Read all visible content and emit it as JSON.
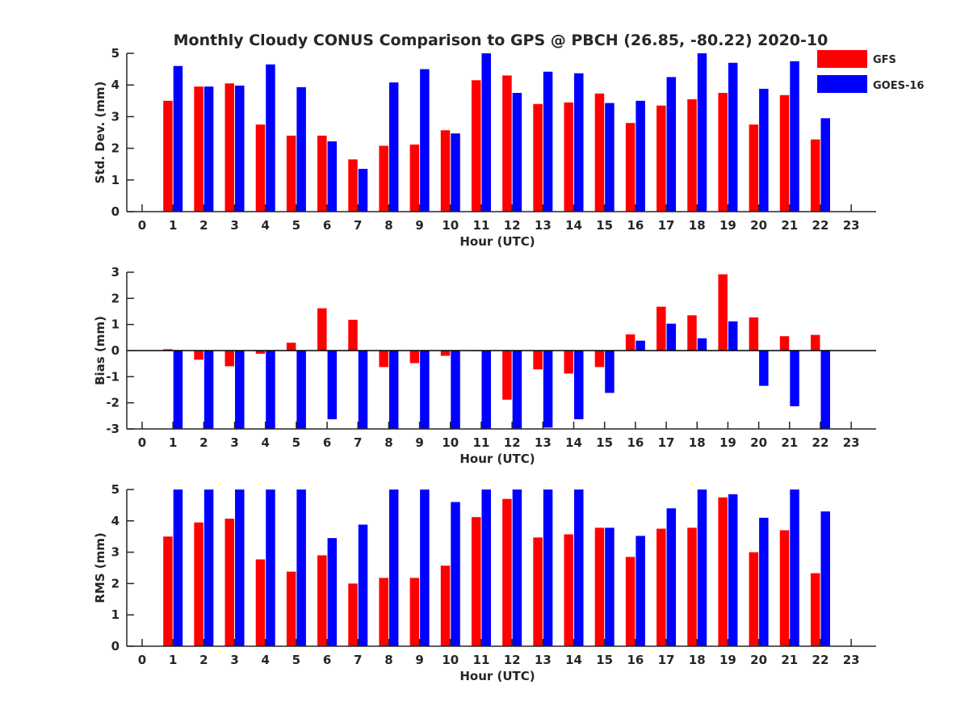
{
  "chart_data": {
    "title": "Monthly Cloudy CONUS Comparison to GPS @ PBCH (26.85, -80.22) 2020-10",
    "legend": {
      "placement": "top-right",
      "entries": [
        {
          "name": "GFS",
          "color": "#ff0000"
        },
        {
          "name": "GOES-16",
          "color": "#0000ff"
        }
      ]
    },
    "panels": [
      {
        "type": "bar",
        "xlabel": "Hour (UTC)",
        "ylabel": "Std. Dev. (mm)",
        "ylim": [
          0,
          5
        ],
        "yticks": [
          0,
          1,
          2,
          3,
          4,
          5
        ],
        "xticks": [
          "0",
          "1",
          "2",
          "3",
          "4",
          "5",
          "6",
          "7",
          "8",
          "9",
          "10",
          "11",
          "12",
          "13",
          "14",
          "15",
          "16",
          "17",
          "18",
          "19",
          "20",
          "21",
          "22",
          "23"
        ],
        "series": [
          {
            "name": "GFS",
            "values": [
              null,
              3.5,
              3.95,
              4.05,
              2.75,
              2.4,
              2.4,
              1.65,
              2.08,
              2.12,
              2.57,
              4.15,
              4.3,
              3.4,
              3.45,
              3.73,
              2.8,
              3.35,
              3.55,
              3.75,
              2.75,
              3.68,
              2.28,
              null
            ]
          },
          {
            "name": "GOES-16",
            "values": [
              null,
              4.6,
              3.95,
              3.98,
              4.65,
              3.93,
              2.22,
              1.35,
              4.08,
              4.5,
              2.47,
              5.0,
              3.75,
              4.42,
              4.37,
              3.43,
              3.5,
              4.25,
              5.0,
              4.7,
              3.88,
              4.75,
              2.95,
              null
            ]
          }
        ]
      },
      {
        "type": "bar",
        "xlabel": "Hour (UTC)",
        "ylabel": "Bias (mm)",
        "ylim": [
          -3,
          3
        ],
        "yticks": [
          -3,
          -2,
          -1,
          0,
          1,
          2,
          3
        ],
        "xticks": [
          "0",
          "1",
          "2",
          "3",
          "4",
          "5",
          "6",
          "7",
          "8",
          "9",
          "10",
          "11",
          "12",
          "13",
          "14",
          "15",
          "16",
          "17",
          "18",
          "19",
          "20",
          "21",
          "22",
          "23"
        ],
        "series": [
          {
            "name": "GFS",
            "values": [
              null,
              0.05,
              -0.35,
              -0.6,
              -0.12,
              0.3,
              1.62,
              1.18,
              -0.63,
              -0.48,
              -0.2,
              -0.02,
              -1.88,
              -0.72,
              -0.88,
              -0.63,
              0.62,
              1.68,
              1.35,
              2.92,
              1.27,
              0.55,
              0.6,
              null
            ]
          },
          {
            "name": "GOES-16",
            "values": [
              null,
              -3.0,
              -3.0,
              -3.0,
              -3.0,
              -3.0,
              -2.63,
              -3.0,
              -3.0,
              -3.0,
              -3.0,
              -3.0,
              -3.0,
              -2.95,
              -2.63,
              -1.62,
              0.38,
              1.03,
              0.47,
              1.12,
              -1.35,
              -2.13,
              -3.0,
              null
            ]
          }
        ]
      },
      {
        "type": "bar",
        "xlabel": "Hour (UTC)",
        "ylabel": "RMS (mm)",
        "ylim": [
          0,
          5
        ],
        "yticks": [
          0,
          1,
          2,
          3,
          4,
          5
        ],
        "xticks": [
          "0",
          "1",
          "2",
          "3",
          "4",
          "5",
          "6",
          "7",
          "8",
          "9",
          "10",
          "11",
          "12",
          "13",
          "14",
          "15",
          "16",
          "17",
          "18",
          "19",
          "20",
          "21",
          "22",
          "23"
        ],
        "series": [
          {
            "name": "GFS",
            "values": [
              null,
              3.5,
              3.95,
              4.07,
              2.77,
              2.38,
              2.9,
              2.0,
              2.18,
              2.18,
              2.57,
              4.12,
              4.7,
              3.47,
              3.57,
              3.78,
              2.85,
              3.75,
              3.78,
              4.75,
              3.0,
              3.7,
              2.33,
              null
            ]
          },
          {
            "name": "GOES-16",
            "values": [
              null,
              5.0,
              5.0,
              5.0,
              5.0,
              5.0,
              3.45,
              3.88,
              5.0,
              5.0,
              4.6,
              5.0,
              5.0,
              5.0,
              5.0,
              3.78,
              3.52,
              4.4,
              5.0,
              4.85,
              4.1,
              5.0,
              4.3,
              null
            ]
          }
        ]
      }
    ]
  }
}
